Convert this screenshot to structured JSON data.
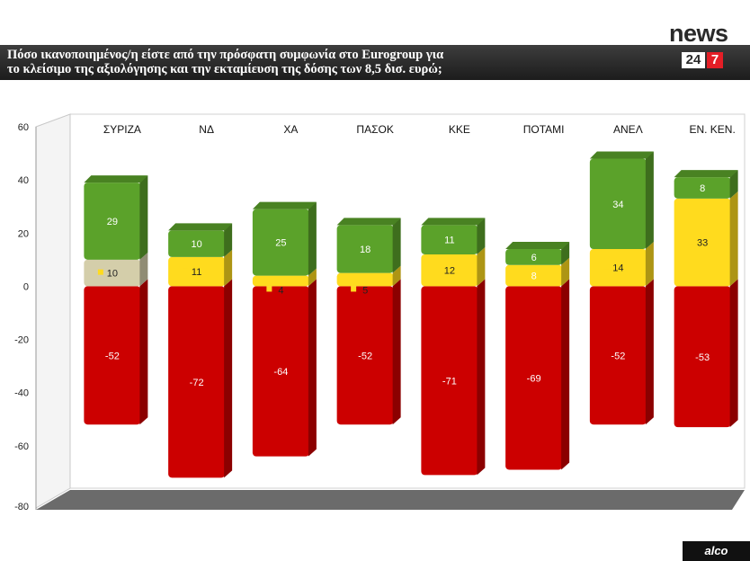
{
  "header": {
    "title_line1": "Πόσο ικανοποιημένος/η είστε από την πρόσφατη συμφωνία στο Eurogroup  για",
    "title_line2": "το κλείσιμο της αξιολόγησης και την εκταμίευση της δόσης των 8,5 δισ. ευρώ;"
  },
  "logo": {
    "word": "news",
    "num_a": "24",
    "num_b": "7"
  },
  "source_label": "alco",
  "colors": {
    "red": "#cc0000",
    "green": "#5ba22a",
    "yellow": "#ffdb1e",
    "beige": "#d4ceaa",
    "floor": "#6b6b6b"
  },
  "chart_data": {
    "type": "bar",
    "stacked": true,
    "categories": [
      "ΣΥΡΙΖΑ",
      "ΝΔ",
      "ΧΑ",
      "ΠΑΣΟΚ",
      "ΚΚΕ",
      "ΠΟΤΑΜΙ",
      "ΑΝΕΛ",
      "ΕΝ. ΚΕΝ."
    ],
    "series": [
      {
        "values": [
          -52,
          -72,
          -64,
          -52,
          -71,
          -69,
          -52,
          -53
        ],
        "color": "red"
      },
      {
        "values": [
          10,
          11,
          4,
          5,
          12,
          8,
          14,
          33
        ],
        "color": "yellow"
      },
      {
        "values": [
          29,
          10,
          25,
          18,
          11,
          6,
          34,
          8
        ],
        "color": "green"
      }
    ],
    "ylim": [
      -80,
      60
    ],
    "yticks": [
      "60",
      "40",
      "20",
      "0",
      "-20",
      "-40",
      "-60",
      "-80"
    ],
    "grid": false,
    "legend": "none",
    "title": "",
    "xlabel": "",
    "ylabel": ""
  }
}
